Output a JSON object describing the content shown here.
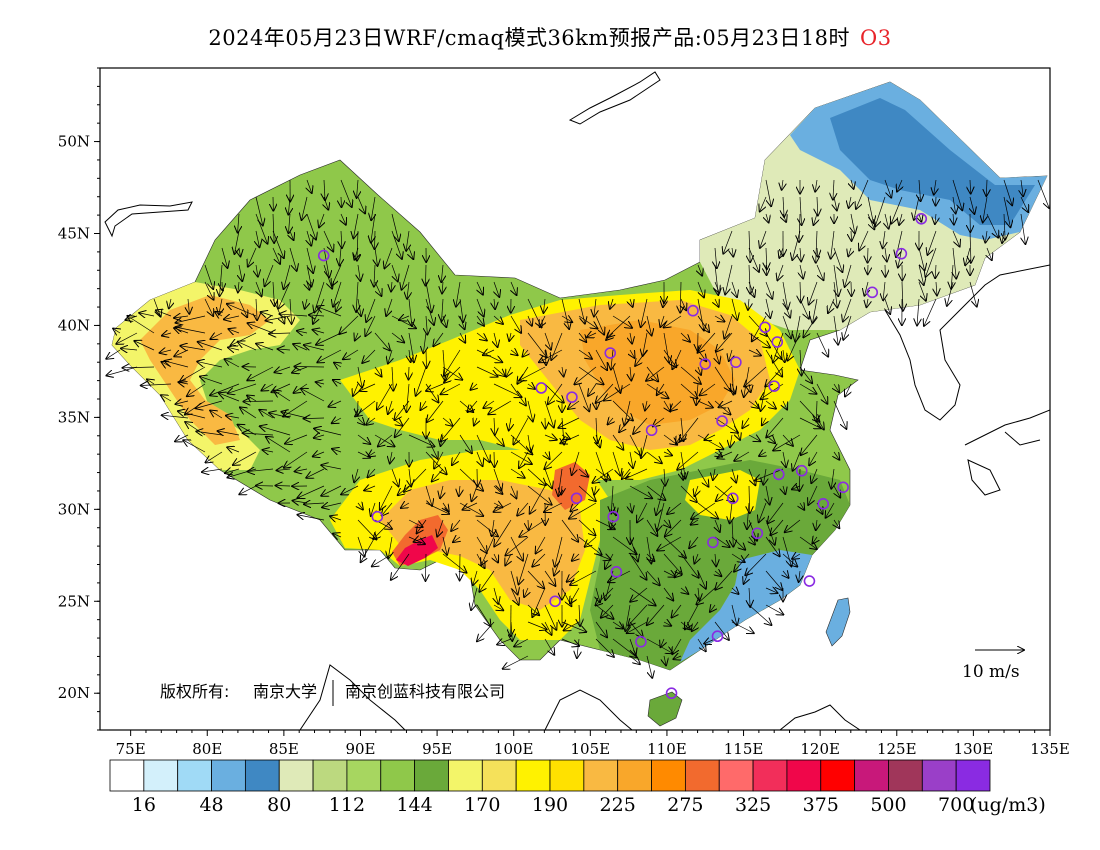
{
  "title": {
    "main": "2024年05月23日WRF/cmaq模式36km预报产品:05月23日18时",
    "species": "O3",
    "species_color": "#e8242a"
  },
  "map": {
    "lon_range": [
      73,
      135
    ],
    "lat_range": [
      18,
      54
    ],
    "lon_ticks": [
      "75E",
      "80E",
      "85E",
      "90E",
      "95E",
      "100E",
      "105E",
      "110E",
      "115E",
      "120E",
      "125E",
      "130E",
      "135E"
    ],
    "lat_ticks": [
      "20N",
      "25N",
      "30N",
      "35N",
      "40N",
      "45N",
      "50N"
    ],
    "copyright_label": "版权所有:",
    "copyright_org1": "南京大学",
    "copyright_org2": "南京创蓝科技有限公司",
    "wind_reference_label": "10 m/s",
    "site_marker_color": "#8a2be2"
  },
  "colorbar": {
    "colors": [
      "#ffffff",
      "#d3f0fb",
      "#a0daf6",
      "#6aafe0",
      "#3f88c3",
      "#dfeab8",
      "#bcd97f",
      "#a7d660",
      "#8fc84a",
      "#6aa93a",
      "#f3f569",
      "#f5e15a",
      "#fff200",
      "#ffe100",
      "#f9b942",
      "#f9a72a",
      "#ff8a00",
      "#f26a2e",
      "#ff6a6a",
      "#f22e5a",
      "#f0064a",
      "#ff0000",
      "#c8187a",
      "#a0365a",
      "#9a3fc8",
      "#8a2be2"
    ],
    "labels": [
      "16",
      "48",
      "80",
      "112",
      "144",
      "170",
      "190",
      "225",
      "275",
      "325",
      "375",
      "500",
      "700"
    ],
    "unit": "(ug/m3)"
  }
}
